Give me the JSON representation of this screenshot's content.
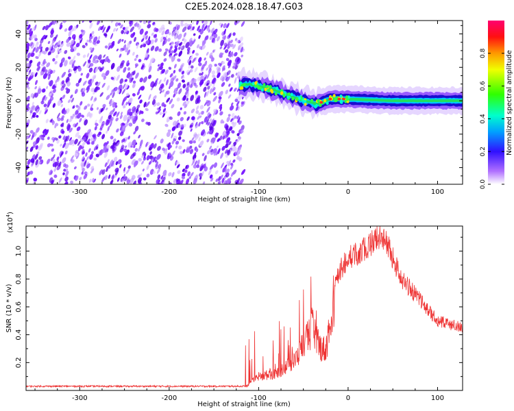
{
  "title": "C2E5.2024.028.18.47.G03",
  "chart_data": [
    {
      "type": "heatmap",
      "name": "spectrogram",
      "xlabel": "Height of straight line (km)",
      "ylabel": "Frequency (Hz)",
      "xlim": [
        -360,
        128
      ],
      "ylim": [
        -50,
        48
      ],
      "xticks": [
        -300,
        -200,
        -100,
        0,
        100
      ],
      "yticks": [
        -40,
        -20,
        0,
        20,
        40
      ],
      "colorbar": {
        "label": "Normalized spectral amplitude",
        "range": [
          0,
          1
        ],
        "ticks": [
          "0.0",
          "0.2",
          "0.4",
          "0.6",
          "0.8"
        ]
      },
      "noise_region_x": [
        -360,
        -120
      ],
      "signal_track": [
        {
          "x": -125,
          "freq": 9
        },
        {
          "x": -110,
          "freq": 10
        },
        {
          "x": -95,
          "freq": 8
        },
        {
          "x": -80,
          "freq": 6
        },
        {
          "x": -65,
          "freq": 3
        },
        {
          "x": -50,
          "freq": 0
        },
        {
          "x": -35,
          "freq": -2
        },
        {
          "x": -20,
          "freq": 1
        },
        {
          "x": 0,
          "freq": 1
        },
        {
          "x": 50,
          "freq": 0
        },
        {
          "x": 128,
          "freq": 0
        }
      ]
    },
    {
      "type": "line",
      "name": "snr",
      "xlabel": "Height of straight line (km)",
      "ylabel": "SNR (10 * v/v)",
      "multiplier": "(x10",
      "multiplier_exp": "4",
      "xlim": [
        -360,
        128
      ],
      "ylim": [
        0,
        1.18
      ],
      "xticks": [
        -300,
        -200,
        -100,
        0,
        100
      ],
      "yticks": [
        0.2,
        0.4,
        0.6,
        0.8,
        1.0
      ],
      "ytick_labels": [
        "0.2",
        "0.4",
        "0.6",
        "0.8",
        "1.0"
      ],
      "color": "#ee3333",
      "envelope": [
        {
          "x": -360,
          "y": 0.03
        },
        {
          "x": -115,
          "y": 0.03
        },
        {
          "x": -100,
          "y": 0.12
        },
        {
          "x": -80,
          "y": 0.15
        },
        {
          "x": -60,
          "y": 0.25
        },
        {
          "x": -50,
          "y": 0.4
        },
        {
          "x": -40,
          "y": 0.55
        },
        {
          "x": -35,
          "y": 0.4
        },
        {
          "x": -25,
          "y": 0.35
        },
        {
          "x": -15,
          "y": 0.8
        },
        {
          "x": 0,
          "y": 0.95
        },
        {
          "x": 15,
          "y": 1.0
        },
        {
          "x": 30,
          "y": 1.08
        },
        {
          "x": 40,
          "y": 1.1
        },
        {
          "x": 50,
          "y": 0.95
        },
        {
          "x": 60,
          "y": 0.8
        },
        {
          "x": 80,
          "y": 0.65
        },
        {
          "x": 100,
          "y": 0.5
        },
        {
          "x": 128,
          "y": 0.45
        }
      ]
    }
  ]
}
